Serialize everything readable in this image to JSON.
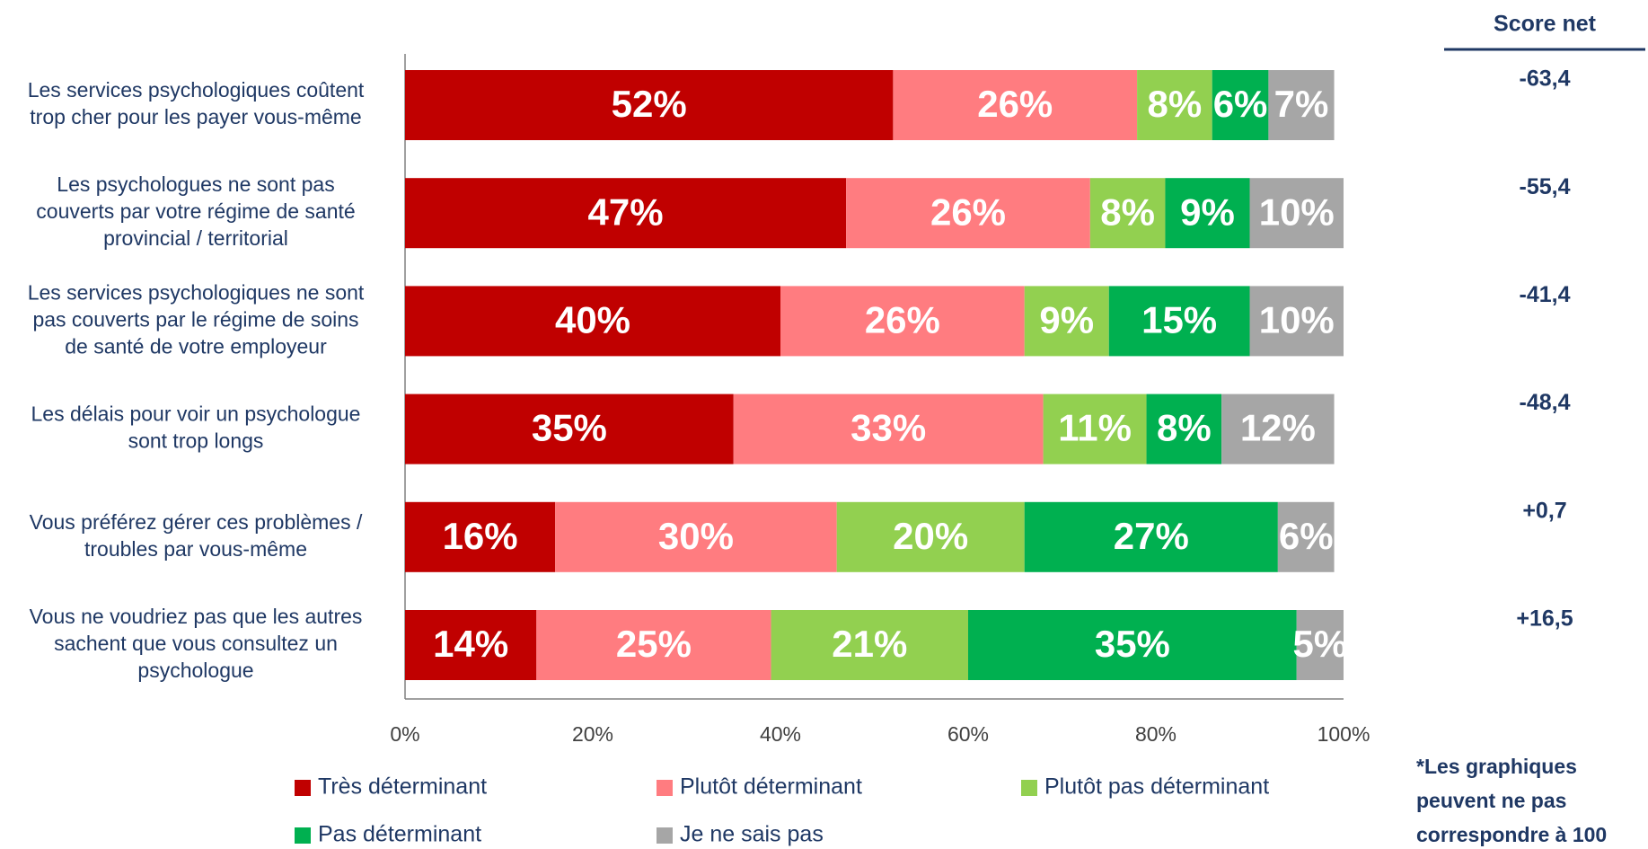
{
  "chart_data": {
    "type": "stacked_bar_horizontal",
    "categories": [
      "Les services psychologiques coûtent\ntrop cher pour les payer vous-même",
      "Les psychologues ne sont pas\ncouverts par votre régime de santé\nprovincial / territorial",
      "Les services psychologiques ne sont\npas couverts par le régime de soins\nde santé de votre employeur",
      "Les délais pour voir un psychologue\nsont trop longs",
      "Vous préférez gérer ces problèmes /\ntroubles par vous-même",
      "Vous ne voudriez pas que les autres\nsachent que vous consultez un\npsychologue"
    ],
    "series": [
      {
        "name": "Très déterminant",
        "color": "#c00000",
        "values": [
          52,
          47,
          40,
          35,
          16,
          14
        ],
        "value_labels": [
          "52%",
          "47%",
          "40%",
          "35%",
          "16%",
          "14%"
        ]
      },
      {
        "name": "Plutôt déterminant",
        "color": "#ff7c80",
        "values": [
          26,
          26,
          26,
          33,
          30,
          25
        ],
        "value_labels": [
          "26%",
          "26%",
          "26%",
          "33%",
          "30%",
          "25%"
        ]
      },
      {
        "name": "Plutôt pas déterminant",
        "color": "#92d050",
        "values": [
          8,
          8,
          9,
          11,
          20,
          21
        ],
        "value_labels": [
          "8%",
          "8%",
          "9%",
          "11%",
          "20%",
          "21%"
        ]
      },
      {
        "name": "Pas déterminant",
        "color": "#00b050",
        "values": [
          6,
          9,
          15,
          8,
          27,
          35
        ],
        "value_labels": [
          "6%",
          "9%",
          "15%",
          "8%",
          "27%",
          "35%"
        ]
      },
      {
        "name": "Je ne sais pas",
        "color": "#a6a6a6",
        "values": [
          7,
          10,
          10,
          12,
          6,
          5
        ],
        "value_labels": [
          "7%",
          "10%",
          "10%",
          "12%",
          "6%",
          "5%"
        ]
      }
    ],
    "xlim": [
      0,
      100
    ],
    "xticks": [
      {
        "value": 0,
        "label": "0%"
      },
      {
        "value": 20,
        "label": "20%"
      },
      {
        "value": 40,
        "label": "40%"
      },
      {
        "value": 60,
        "label": "60%"
      },
      {
        "value": 80,
        "label": "80%"
      },
      {
        "value": 100,
        "label": "100%"
      }
    ],
    "score_net": {
      "title": "Score net",
      "labels": [
        "-63,4",
        "-55,4",
        "-41,4",
        "-48,4",
        "+0,7",
        "+16,5"
      ]
    },
    "footnote": "*Les graphiques\npeuvent ne pas\ncorrespondre à 100"
  }
}
